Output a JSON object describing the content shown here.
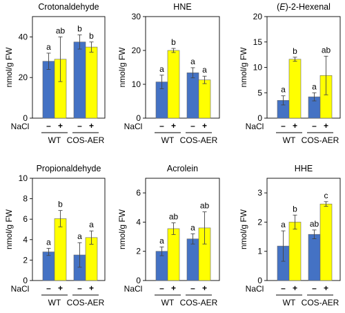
{
  "chart_data": [
    {
      "type": "bar",
      "title": "Crotonaldehyde",
      "ylabel": "nmol/g FW",
      "ylim": [
        0,
        50
      ],
      "yticks": [
        0,
        20,
        40
      ],
      "groups": [
        "WT",
        "COS-AER"
      ],
      "treatment_label": "NaCl",
      "treatments": [
        "–",
        "+"
      ],
      "series": [
        {
          "treatment": "–",
          "color": "#4472C4",
          "values": [
            28,
            37.5
          ],
          "errors": [
            4,
            3.5
          ],
          "letters": [
            "a",
            "b"
          ]
        },
        {
          "treatment": "+",
          "color": "#FFFF00",
          "values": [
            29,
            35
          ],
          "errors": [
            11,
            2.5
          ],
          "letters": [
            "ab",
            "b"
          ]
        }
      ]
    },
    {
      "type": "bar",
      "title": "HNE",
      "ylabel": "nmol/g FW",
      "ylim": [
        0,
        30
      ],
      "yticks": [
        0,
        10,
        20,
        30
      ],
      "groups": [
        "WT",
        "COS-AER"
      ],
      "treatment_label": "NaCl",
      "treatments": [
        "–",
        "+"
      ],
      "series": [
        {
          "treatment": "–",
          "color": "#4472C4",
          "values": [
            10.7,
            13.4
          ],
          "errors": [
            2,
            1.5
          ],
          "letters": [
            "a",
            "a"
          ]
        },
        {
          "treatment": "+",
          "color": "#FFFF00",
          "values": [
            20,
            11.3
          ],
          "errors": [
            0.6,
            1.1
          ],
          "letters": [
            "b",
            "a"
          ]
        }
      ]
    },
    {
      "type": "bar",
      "title": "(E)-2-Hexenal",
      "title_italic_part": "E",
      "ylabel": "nmol/g FW",
      "ylim": [
        0,
        20
      ],
      "yticks": [
        0,
        5,
        10,
        15,
        20
      ],
      "groups": [
        "WT",
        "COS-AER"
      ],
      "treatment_label": "NaCl",
      "treatments": [
        "–",
        "+"
      ],
      "series": [
        {
          "treatment": "–",
          "color": "#4472C4",
          "values": [
            3.5,
            4.2
          ],
          "errors": [
            0.9,
            0.8
          ],
          "letters": [
            "a",
            "a"
          ]
        },
        {
          "treatment": "+",
          "color": "#FFFF00",
          "values": [
            11.6,
            8.4
          ],
          "errors": [
            0.4,
            3.8
          ],
          "letters": [
            "b",
            "ab"
          ]
        }
      ]
    },
    {
      "type": "bar",
      "title": "Propionaldehyde",
      "ylabel": "nmol/g FW",
      "ylim": [
        0,
        10
      ],
      "yticks": [
        0,
        2,
        4,
        6,
        8,
        10
      ],
      "groups": [
        "WT",
        "COS-AER"
      ],
      "treatment_label": "NaCl",
      "treatments": [
        "–",
        "+"
      ],
      "series": [
        {
          "treatment": "–",
          "color": "#4472C4",
          "values": [
            2.8,
            2.5
          ],
          "errors": [
            0.35,
            1.2
          ],
          "letters": [
            "a",
            "a"
          ]
        },
        {
          "treatment": "+",
          "color": "#FFFF00",
          "values": [
            6.05,
            4.2
          ],
          "errors": [
            0.8,
            0.65
          ],
          "letters": [
            "b",
            "a"
          ]
        }
      ]
    },
    {
      "type": "bar",
      "title": "Acrolein",
      "ylabel": "nmol/g FW",
      "ylim": [
        0,
        7
      ],
      "yticks": [
        0,
        2,
        4,
        6
      ],
      "groups": [
        "WT",
        "COS-AER"
      ],
      "treatment_label": "NaCl",
      "treatments": [
        "–",
        "+"
      ],
      "series": [
        {
          "treatment": "–",
          "color": "#4472C4",
          "values": [
            2.0,
            2.85
          ],
          "errors": [
            0.3,
            0.35
          ],
          "letters": [
            "a",
            "a"
          ]
        },
        {
          "treatment": "+",
          "color": "#FFFF00",
          "values": [
            3.55,
            3.6
          ],
          "errors": [
            0.4,
            1.1
          ],
          "letters": [
            "ab",
            "ab"
          ]
        }
      ]
    },
    {
      "type": "bar",
      "title": "HHE",
      "ylabel": "nmol/g FW",
      "ylim": [
        0,
        3.5
      ],
      "yticks": [
        0,
        1,
        2,
        3
      ],
      "groups": [
        "WT",
        "COS-AER"
      ],
      "treatment_label": "NaCl",
      "treatments": [
        "–",
        "+"
      ],
      "series": [
        {
          "treatment": "–",
          "color": "#4472C4",
          "values": [
            1.18,
            1.58
          ],
          "errors": [
            0.52,
            0.15
          ],
          "letters": [
            "a",
            "ab"
          ]
        },
        {
          "treatment": "+",
          "color": "#FFFF00",
          "values": [
            2.0,
            2.62
          ],
          "errors": [
            0.24,
            0.08
          ],
          "letters": [
            "b",
            "c"
          ]
        }
      ]
    }
  ]
}
